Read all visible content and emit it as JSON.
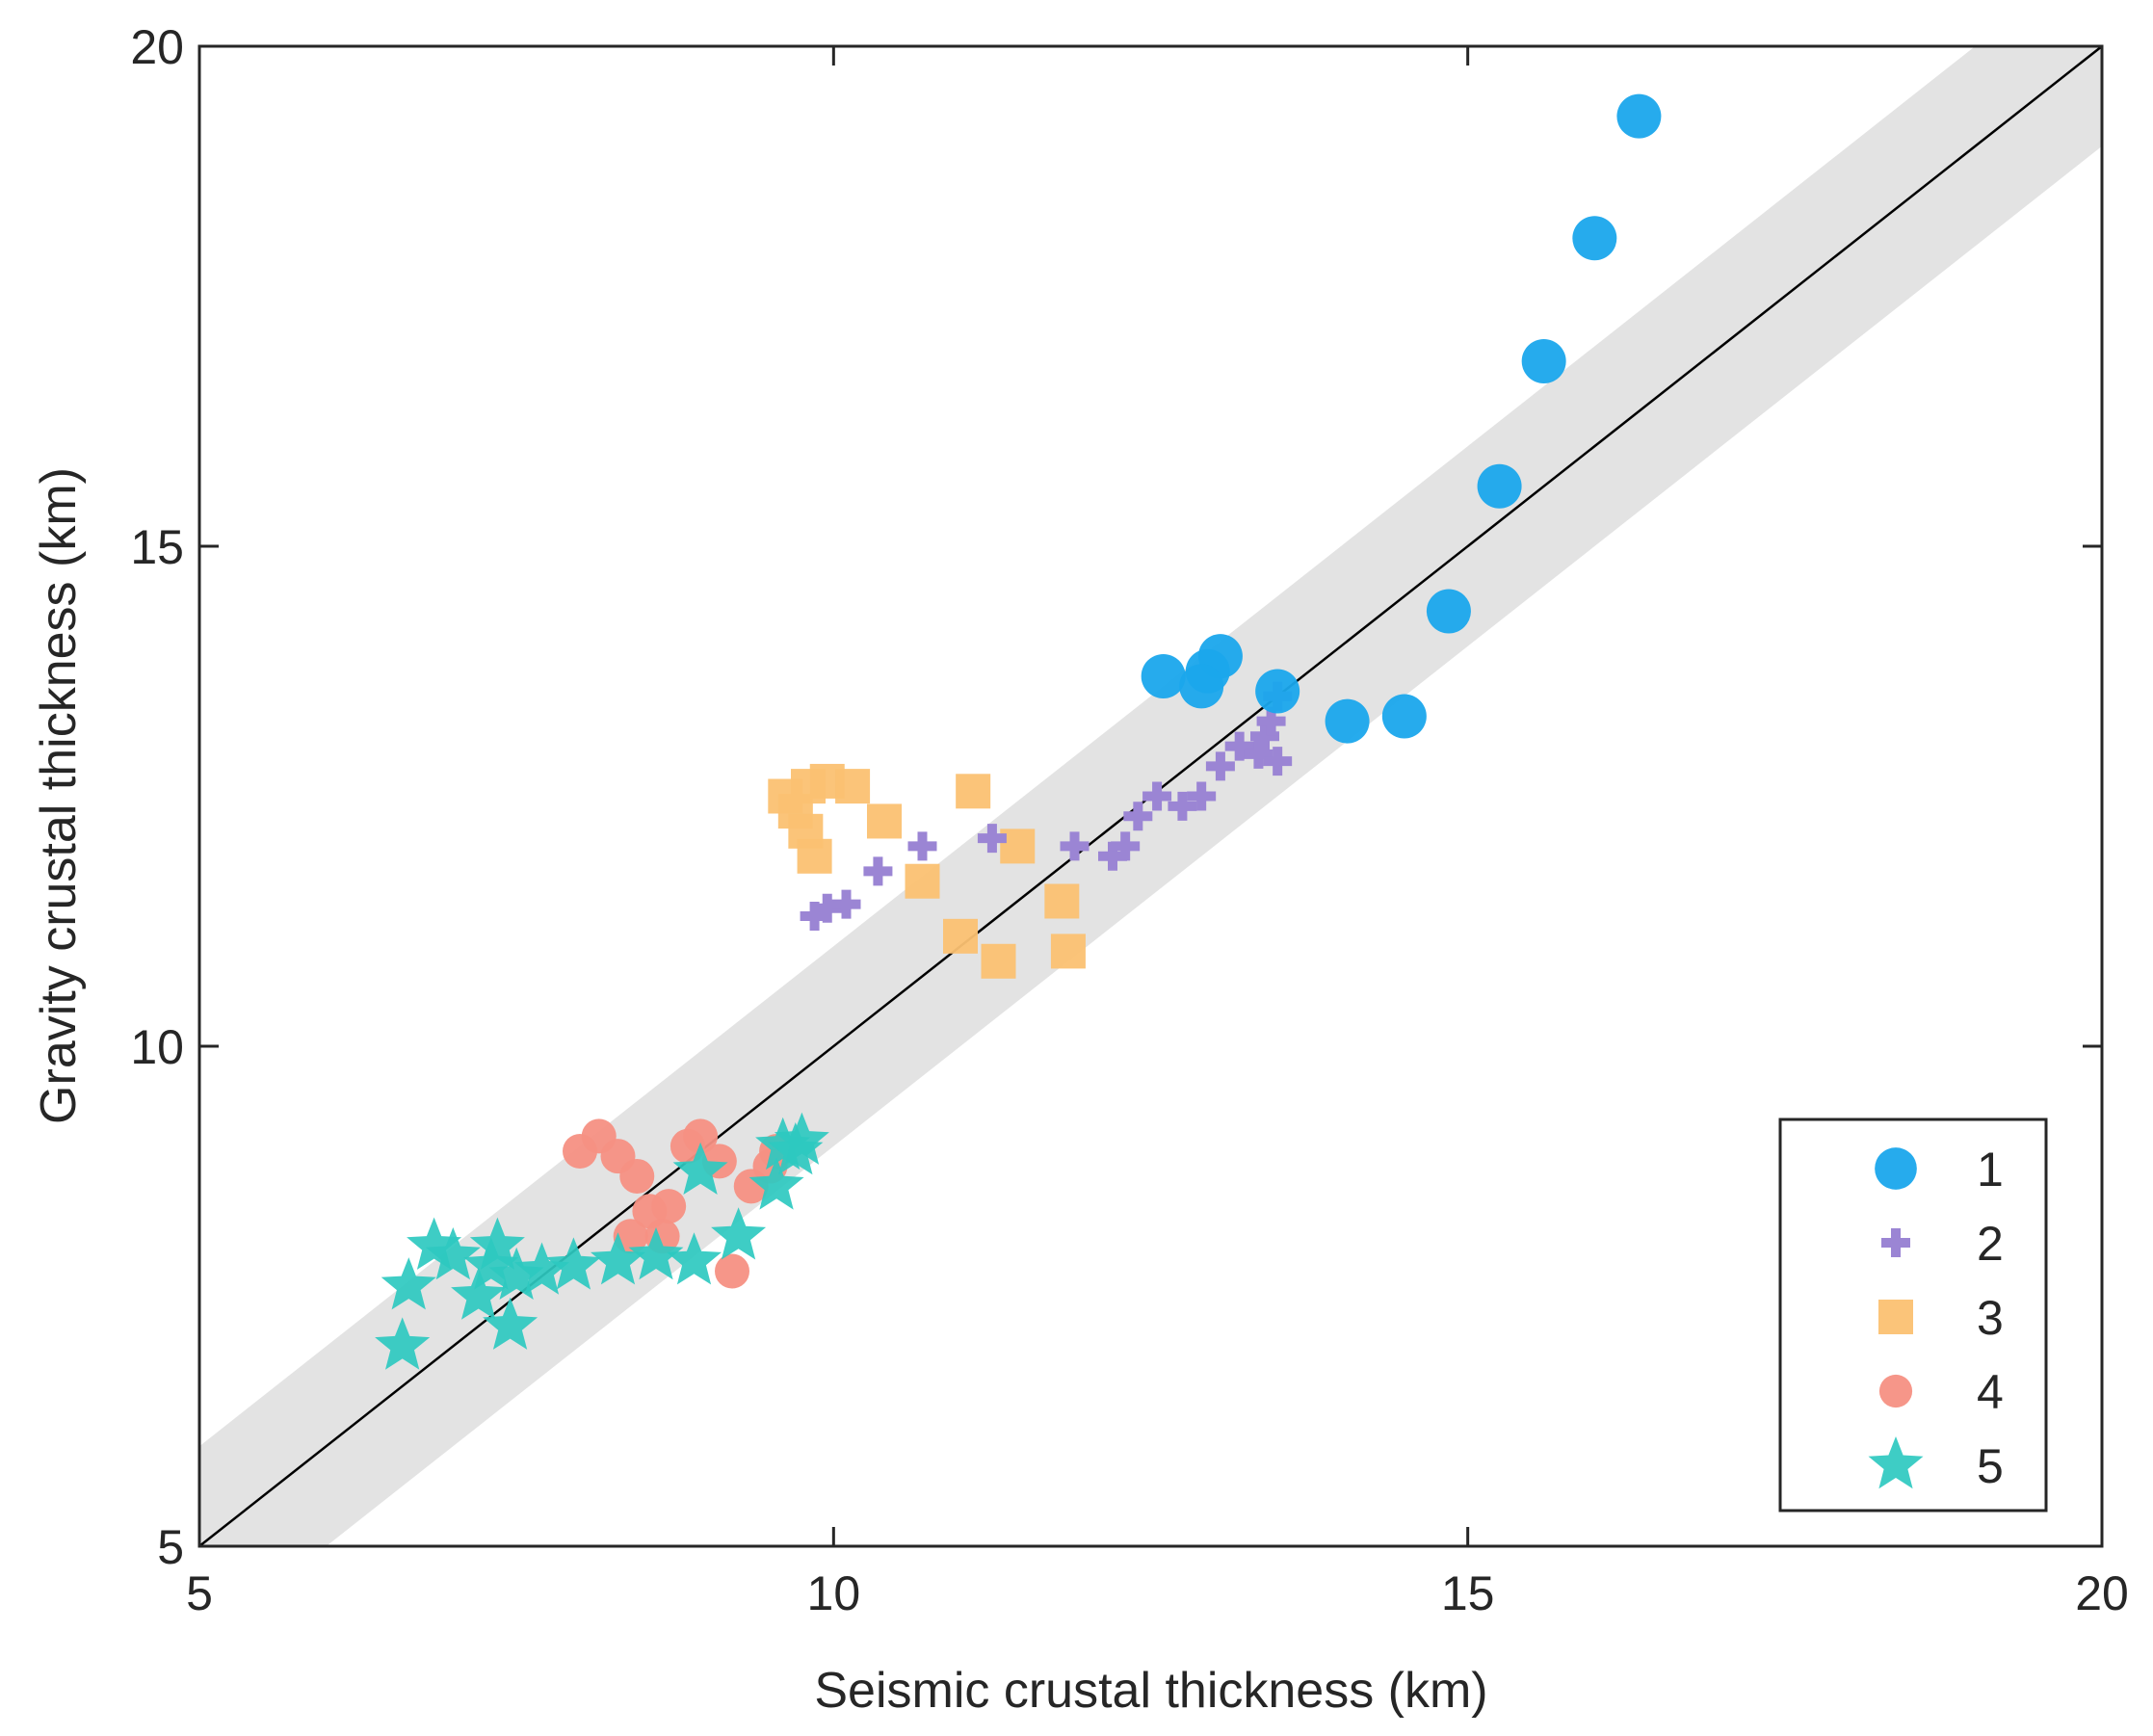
{
  "chart_data": {
    "type": "scatter",
    "title": "",
    "xlabel": "Seismic crustal thickness (km)",
    "ylabel": "Gravity crustal thickness (km)",
    "xlim": [
      5,
      20
    ],
    "ylim": [
      5,
      20
    ],
    "xticks": [
      "5",
      "10",
      "15",
      "20"
    ],
    "yticks": [
      "5",
      "10",
      "15",
      "20"
    ],
    "grid": false,
    "legend_position": "bottom-right",
    "reference_line": {
      "slope": 1,
      "intercept": 0,
      "color": "#000000"
    },
    "uncertainty_band_km": 1,
    "band_color": "#e3e3e3",
    "series": [
      {
        "name": "1",
        "marker": "circle",
        "color": "#1aa7ec",
        "points": [
          [
            16.35,
            19.3
          ],
          [
            16.0,
            18.08
          ],
          [
            15.6,
            16.85
          ],
          [
            15.25,
            15.6
          ],
          [
            14.85,
            14.35
          ],
          [
            14.5,
            13.3
          ],
          [
            14.05,
            13.25
          ],
          [
            13.5,
            13.55
          ],
          [
            13.05,
            13.9
          ],
          [
            12.95,
            13.75
          ],
          [
            12.9,
            13.6
          ],
          [
            12.6,
            13.7
          ]
        ]
      },
      {
        "name": "2",
        "marker": "plus",
        "color": "#9b85d4",
        "points": [
          [
            9.85,
            11.3
          ],
          [
            9.95,
            11.38
          ],
          [
            10.1,
            11.42
          ],
          [
            10.35,
            11.75
          ],
          [
            10.7,
            12.0
          ],
          [
            11.25,
            12.08
          ],
          [
            11.9,
            12.0
          ],
          [
            12.2,
            11.9
          ],
          [
            12.3,
            12.0
          ],
          [
            12.4,
            12.3
          ],
          [
            12.55,
            12.5
          ],
          [
            12.75,
            12.4
          ],
          [
            12.9,
            12.5
          ],
          [
            13.05,
            12.8
          ],
          [
            13.2,
            13.0
          ],
          [
            13.35,
            12.92
          ],
          [
            13.4,
            13.1
          ],
          [
            13.45,
            13.25
          ],
          [
            13.5,
            13.5
          ],
          [
            13.5,
            12.85
          ]
        ]
      },
      {
        "name": "3",
        "marker": "square",
        "color": "#fbc172",
        "points": [
          [
            9.62,
            12.5
          ],
          [
            9.7,
            12.35
          ],
          [
            9.78,
            12.15
          ],
          [
            9.85,
            11.9
          ],
          [
            9.8,
            12.6
          ],
          [
            9.95,
            12.65
          ],
          [
            10.15,
            12.6
          ],
          [
            10.4,
            12.25
          ],
          [
            10.7,
            11.65
          ],
          [
            11.0,
            11.1
          ],
          [
            11.1,
            12.55
          ],
          [
            11.3,
            10.85
          ],
          [
            11.45,
            12.0
          ],
          [
            11.8,
            11.45
          ],
          [
            11.85,
            10.95
          ]
        ]
      },
      {
        "name": "4",
        "marker": "circle",
        "color": "#f59083",
        "points": [
          [
            8.0,
            8.95
          ],
          [
            8.15,
            9.1
          ],
          [
            8.3,
            8.9
          ],
          [
            8.45,
            8.7
          ],
          [
            8.55,
            8.35
          ],
          [
            8.7,
            8.4
          ],
          [
            8.85,
            9.0
          ],
          [
            8.95,
            9.1
          ],
          [
            9.1,
            8.85
          ],
          [
            9.2,
            7.75
          ],
          [
            9.35,
            8.6
          ],
          [
            9.5,
            8.8
          ],
          [
            9.55,
            8.95
          ],
          [
            8.4,
            8.1
          ],
          [
            8.65,
            8.1
          ]
        ]
      },
      {
        "name": "5",
        "marker": "star",
        "color": "#2ec9c0",
        "points": [
          [
            6.6,
            7.0
          ],
          [
            6.65,
            7.6
          ],
          [
            6.85,
            8.0
          ],
          [
            7.0,
            7.9
          ],
          [
            7.2,
            7.5
          ],
          [
            7.35,
            8.0
          ],
          [
            7.45,
            7.2
          ],
          [
            7.5,
            7.7
          ],
          [
            7.7,
            7.75
          ],
          [
            7.95,
            7.8
          ],
          [
            8.3,
            7.85
          ],
          [
            8.6,
            7.9
          ],
          [
            8.9,
            7.85
          ],
          [
            8.95,
            8.75
          ],
          [
            9.25,
            8.1
          ],
          [
            9.55,
            8.6
          ],
          [
            9.6,
            9.0
          ],
          [
            9.7,
            8.95
          ],
          [
            9.75,
            9.05
          ],
          [
            7.3,
            7.8
          ]
        ]
      }
    ]
  }
}
